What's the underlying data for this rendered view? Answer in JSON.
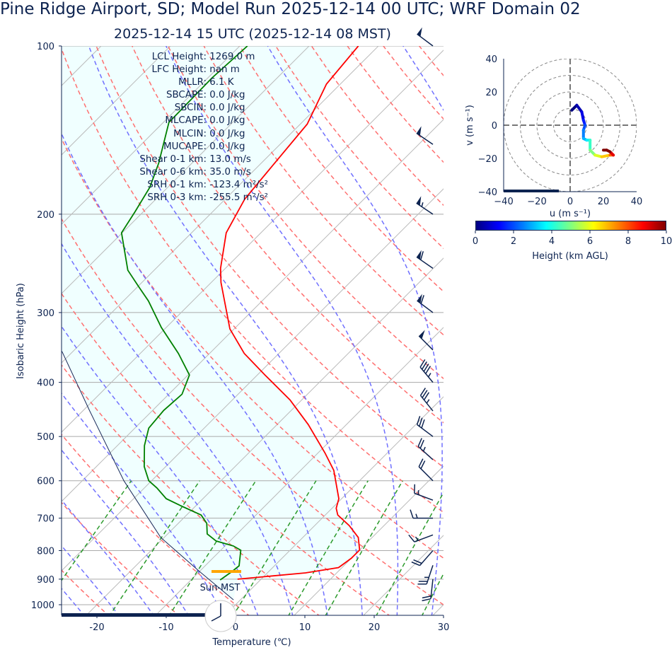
{
  "title": "Pine Ridge Airport, SD; Model Run 2025-12-14 00 UTC; WRF Domain 02",
  "subtitle": "2025-12-14 15 UTC  (2025-12-14 08 MST)",
  "params": [
    {
      "k": "LCL Height:",
      "v": "1269.0 m"
    },
    {
      "k": "LFC Height:",
      "v": "nan m"
    },
    {
      "k": "MLLR:",
      "v": "6.1 K"
    },
    {
      "k": "SBCAPE:",
      "v": "0.0 J/kg"
    },
    {
      "k": "SBCIN:",
      "v": "0.0 J/kg"
    },
    {
      "k": "MLCAPE:",
      "v": "0.0 J/kg"
    },
    {
      "k": "MLCIN:",
      "v": "0.0 J/kg"
    },
    {
      "k": "MUCAPE:",
      "v": "0.0 J/kg"
    },
    {
      "k": "Shear 0-1 km:",
      "v": "13.0 m/s"
    },
    {
      "k": "Shear 0-6 km:",
      "v": "35.0 m/s"
    },
    {
      "k": "SRH 0-1 km:",
      "v": "-123.4 m²/s²"
    },
    {
      "k": "SRH 0-3 km:",
      "v": "-255.5 m²/s²"
    }
  ],
  "clock_label": "Sun-MST",
  "colors": {
    "temperature": "#ff0000",
    "dewpoint": "#008000",
    "parcel": "#1a2a5a",
    "fill": "#f0ffff",
    "lcl": "#ffa500",
    "text": "#0d2350"
  },
  "chart_data": [
    {
      "type": "line",
      "name": "skew-T",
      "xlabel": "Temperature (℃)",
      "ylabel": "Isobaric Height (hPa)",
      "xlim": [
        -25,
        30
      ],
      "ylim": [
        1050,
        100
      ],
      "xticks": [
        -20,
        -10,
        0,
        10,
        20,
        30
      ],
      "yticks": [
        100,
        200,
        300,
        400,
        500,
        600,
        700,
        800,
        900,
        1000
      ],
      "lcl_pressure": 872,
      "temperature": [
        [
          900,
          -3.4
        ],
        [
          877,
          5.5
        ],
        [
          858,
          9.5
        ],
        [
          826,
          10.0
        ],
        [
          798,
          10.0
        ],
        [
          758,
          8.0
        ],
        [
          722,
          5.0
        ],
        [
          691,
          1.8
        ],
        [
          672,
          0.6
        ],
        [
          646,
          -0.4
        ],
        [
          575,
          -5.2
        ],
        [
          535,
          -9
        ],
        [
          476,
          -15.5
        ],
        [
          430,
          -21.7
        ],
        [
          388,
          -28.9
        ],
        [
          355,
          -35
        ],
        [
          321,
          -40.6
        ],
        [
          265,
          -48.6
        ],
        [
          250,
          -50.7
        ],
        [
          216,
          -55
        ],
        [
          188,
          -57.2
        ],
        [
          164,
          -58
        ],
        [
          138,
          -59
        ],
        [
          117,
          -62
        ],
        [
          100,
          -62.9
        ]
      ],
      "dewpoint": [
        [
          903,
          -5.8
        ],
        [
          872,
          -5.3
        ],
        [
          852,
          -5.1
        ],
        [
          799,
          -7.1
        ],
        [
          785,
          -8.8
        ],
        [
          769,
          -12
        ],
        [
          747,
          -14.3
        ],
        [
          715,
          -15.9
        ],
        [
          691,
          -17.9
        ],
        [
          665,
          -22.2
        ],
        [
          646,
          -25.3
        ],
        [
          618,
          -28.2
        ],
        [
          600,
          -30.4
        ],
        [
          566,
          -33.1
        ],
        [
          519,
          -36.1
        ],
        [
          483,
          -38
        ],
        [
          449,
          -38.4
        ],
        [
          420,
          -38.1
        ],
        [
          388,
          -39.8
        ],
        [
          355,
          -44.5
        ],
        [
          319,
          -50.7
        ],
        [
          286,
          -56.4
        ],
        [
          269,
          -60
        ],
        [
          252,
          -63.8
        ],
        [
          216,
          -70.1
        ],
        [
          198,
          -71.2
        ],
        [
          179,
          -72.6
        ],
        [
          162,
          -74.8
        ],
        [
          137,
          -79.2
        ],
        [
          114,
          -79.4
        ],
        [
          100,
          -78.9
        ]
      ],
      "parcel": [
        [
          980,
          -1
        ],
        [
          872,
          -10
        ],
        [
          758,
          -20.5
        ],
        [
          600,
          -34
        ],
        [
          450,
          -49
        ],
        [
          352,
          -61.6
        ]
      ],
      "wind_ms": [
        {
          "p": 900,
          "u": 1,
          "v": 9,
          "h": 0.0
        },
        {
          "p": 850,
          "u": 4,
          "v": 12,
          "h": 0.5
        },
        {
          "p": 800,
          "u": 7,
          "v": 8,
          "h": 1.0
        },
        {
          "p": 750,
          "u": 8,
          "v": 3,
          "h": 1.5
        },
        {
          "p": 700,
          "u": 9,
          "v": 0,
          "h": 2.0
        },
        {
          "p": 650,
          "u": 8,
          "v": -3,
          "h": 2.5
        },
        {
          "p": 600,
          "u": 8,
          "v": -8,
          "h": 3.0
        },
        {
          "p": 550,
          "u": 10,
          "v": -9,
          "h": 3.6
        },
        {
          "p": 500,
          "u": 12,
          "v": -9,
          "h": 4.3
        },
        {
          "p": 450,
          "u": 12,
          "v": -15,
          "h": 5.0
        },
        {
          "p": 400,
          "u": 15,
          "v": -18,
          "h": 5.9
        },
        {
          "p": 350,
          "u": 19,
          "v": -19,
          "h": 6.8
        },
        {
          "p": 300,
          "u": 24,
          "v": -18,
          "h": 7.8
        },
        {
          "p": 250,
          "u": 26,
          "v": -18,
          "h": 9.0
        },
        {
          "p": 200,
          "u": 24,
          "v": -16,
          "h": 10.0
        },
        {
          "p": 150,
          "u": 22,
          "v": -15,
          "h": 10.0
        },
        {
          "p": 100,
          "u": 20,
          "v": -15,
          "h": 10.0
        }
      ]
    },
    {
      "type": "line",
      "name": "hodograph",
      "xlabel": "u (m s⁻¹)",
      "ylabel": "v (m s⁻¹)",
      "xlim": [
        -40,
        40
      ],
      "ylim": [
        -40,
        40
      ],
      "ticks": [
        -40,
        -20,
        0,
        20,
        40
      ],
      "rings": [
        10,
        20,
        30,
        40
      ],
      "colorbar": {
        "label": "Height (km AGL)",
        "range": [
          0,
          10
        ],
        "ticks": [
          0,
          2,
          4,
          6,
          8,
          10
        ]
      }
    }
  ]
}
